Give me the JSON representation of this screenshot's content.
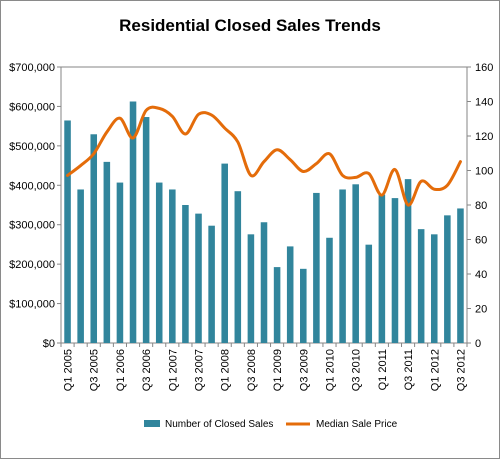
{
  "chart_data": {
    "type": "bar+line",
    "title": "Residential Closed Sales Trends",
    "xlabel": "",
    "ylabel_left": "",
    "ylabel_right": "",
    "categories": [
      "Q1 2005",
      "Q2 2005",
      "Q3 2005",
      "Q4 2005",
      "Q1 2006",
      "Q2 2006",
      "Q3 2006",
      "Q4 2006",
      "Q1 2007",
      "Q2 2007",
      "Q3 2007",
      "Q4 2007",
      "Q1 2008",
      "Q2 2008",
      "Q3 2008",
      "Q4 2008",
      "Q1 2009",
      "Q2 2009",
      "Q3 2009",
      "Q4 2009",
      "Q1 2010",
      "Q2 2010",
      "Q3 2010",
      "Q4 2010",
      "Q1 2011",
      "Q2 2011",
      "Q3 2011",
      "Q4 2011",
      "Q1 2012",
      "Q2 2012",
      "Q3 2012"
    ],
    "x_tick_labels": [
      "Q1 2005",
      "Q3 2005",
      "Q1 2006",
      "Q3 2006",
      "Q1 2007",
      "Q3 2007",
      "Q1 2008",
      "Q3 2008",
      "Q1 2009",
      "Q3 2009",
      "Q1 2010",
      "Q3 2010",
      "Q1 2011",
      "Q3 2011",
      "Q1 2012",
      "Q3 2012"
    ],
    "left_axis": {
      "ylim": [
        0,
        700000
      ],
      "tick_labels": [
        "$0",
        "$100,000",
        "$200,000",
        "$300,000",
        "$400,000",
        "$500,000",
        "$600,000",
        "$700,000"
      ]
    },
    "right_axis": {
      "ylim": [
        0,
        160
      ],
      "tick_labels": [
        "0",
        "20",
        "40",
        "60",
        "80",
        "100",
        "120",
        "140",
        "160"
      ]
    },
    "series": [
      {
        "name": "Number of Closed Sales",
        "type": "bar",
        "axis": "right",
        "color": "#31859c",
        "values": [
          129,
          89,
          121,
          105,
          93,
          140,
          131,
          93,
          89,
          80,
          75,
          68,
          104,
          88,
          63,
          70,
          44,
          56,
          43,
          87,
          61,
          89,
          92,
          57,
          86,
          84,
          95,
          66,
          63,
          74,
          78
        ]
      },
      {
        "name": "Median Sale Price",
        "type": "line",
        "axis": "left",
        "color": "#e46c0a",
        "values": [
          425000,
          450000,
          480000,
          535000,
          570000,
          520000,
          590000,
          595000,
          575000,
          530000,
          580000,
          578000,
          545000,
          510000,
          425000,
          460000,
          490000,
          465000,
          435000,
          455000,
          480000,
          425000,
          420000,
          430000,
          375000,
          440000,
          350000,
          410000,
          390000,
          400000,
          460000
        ]
      }
    ],
    "legend_position": "bottom",
    "grid": false
  }
}
